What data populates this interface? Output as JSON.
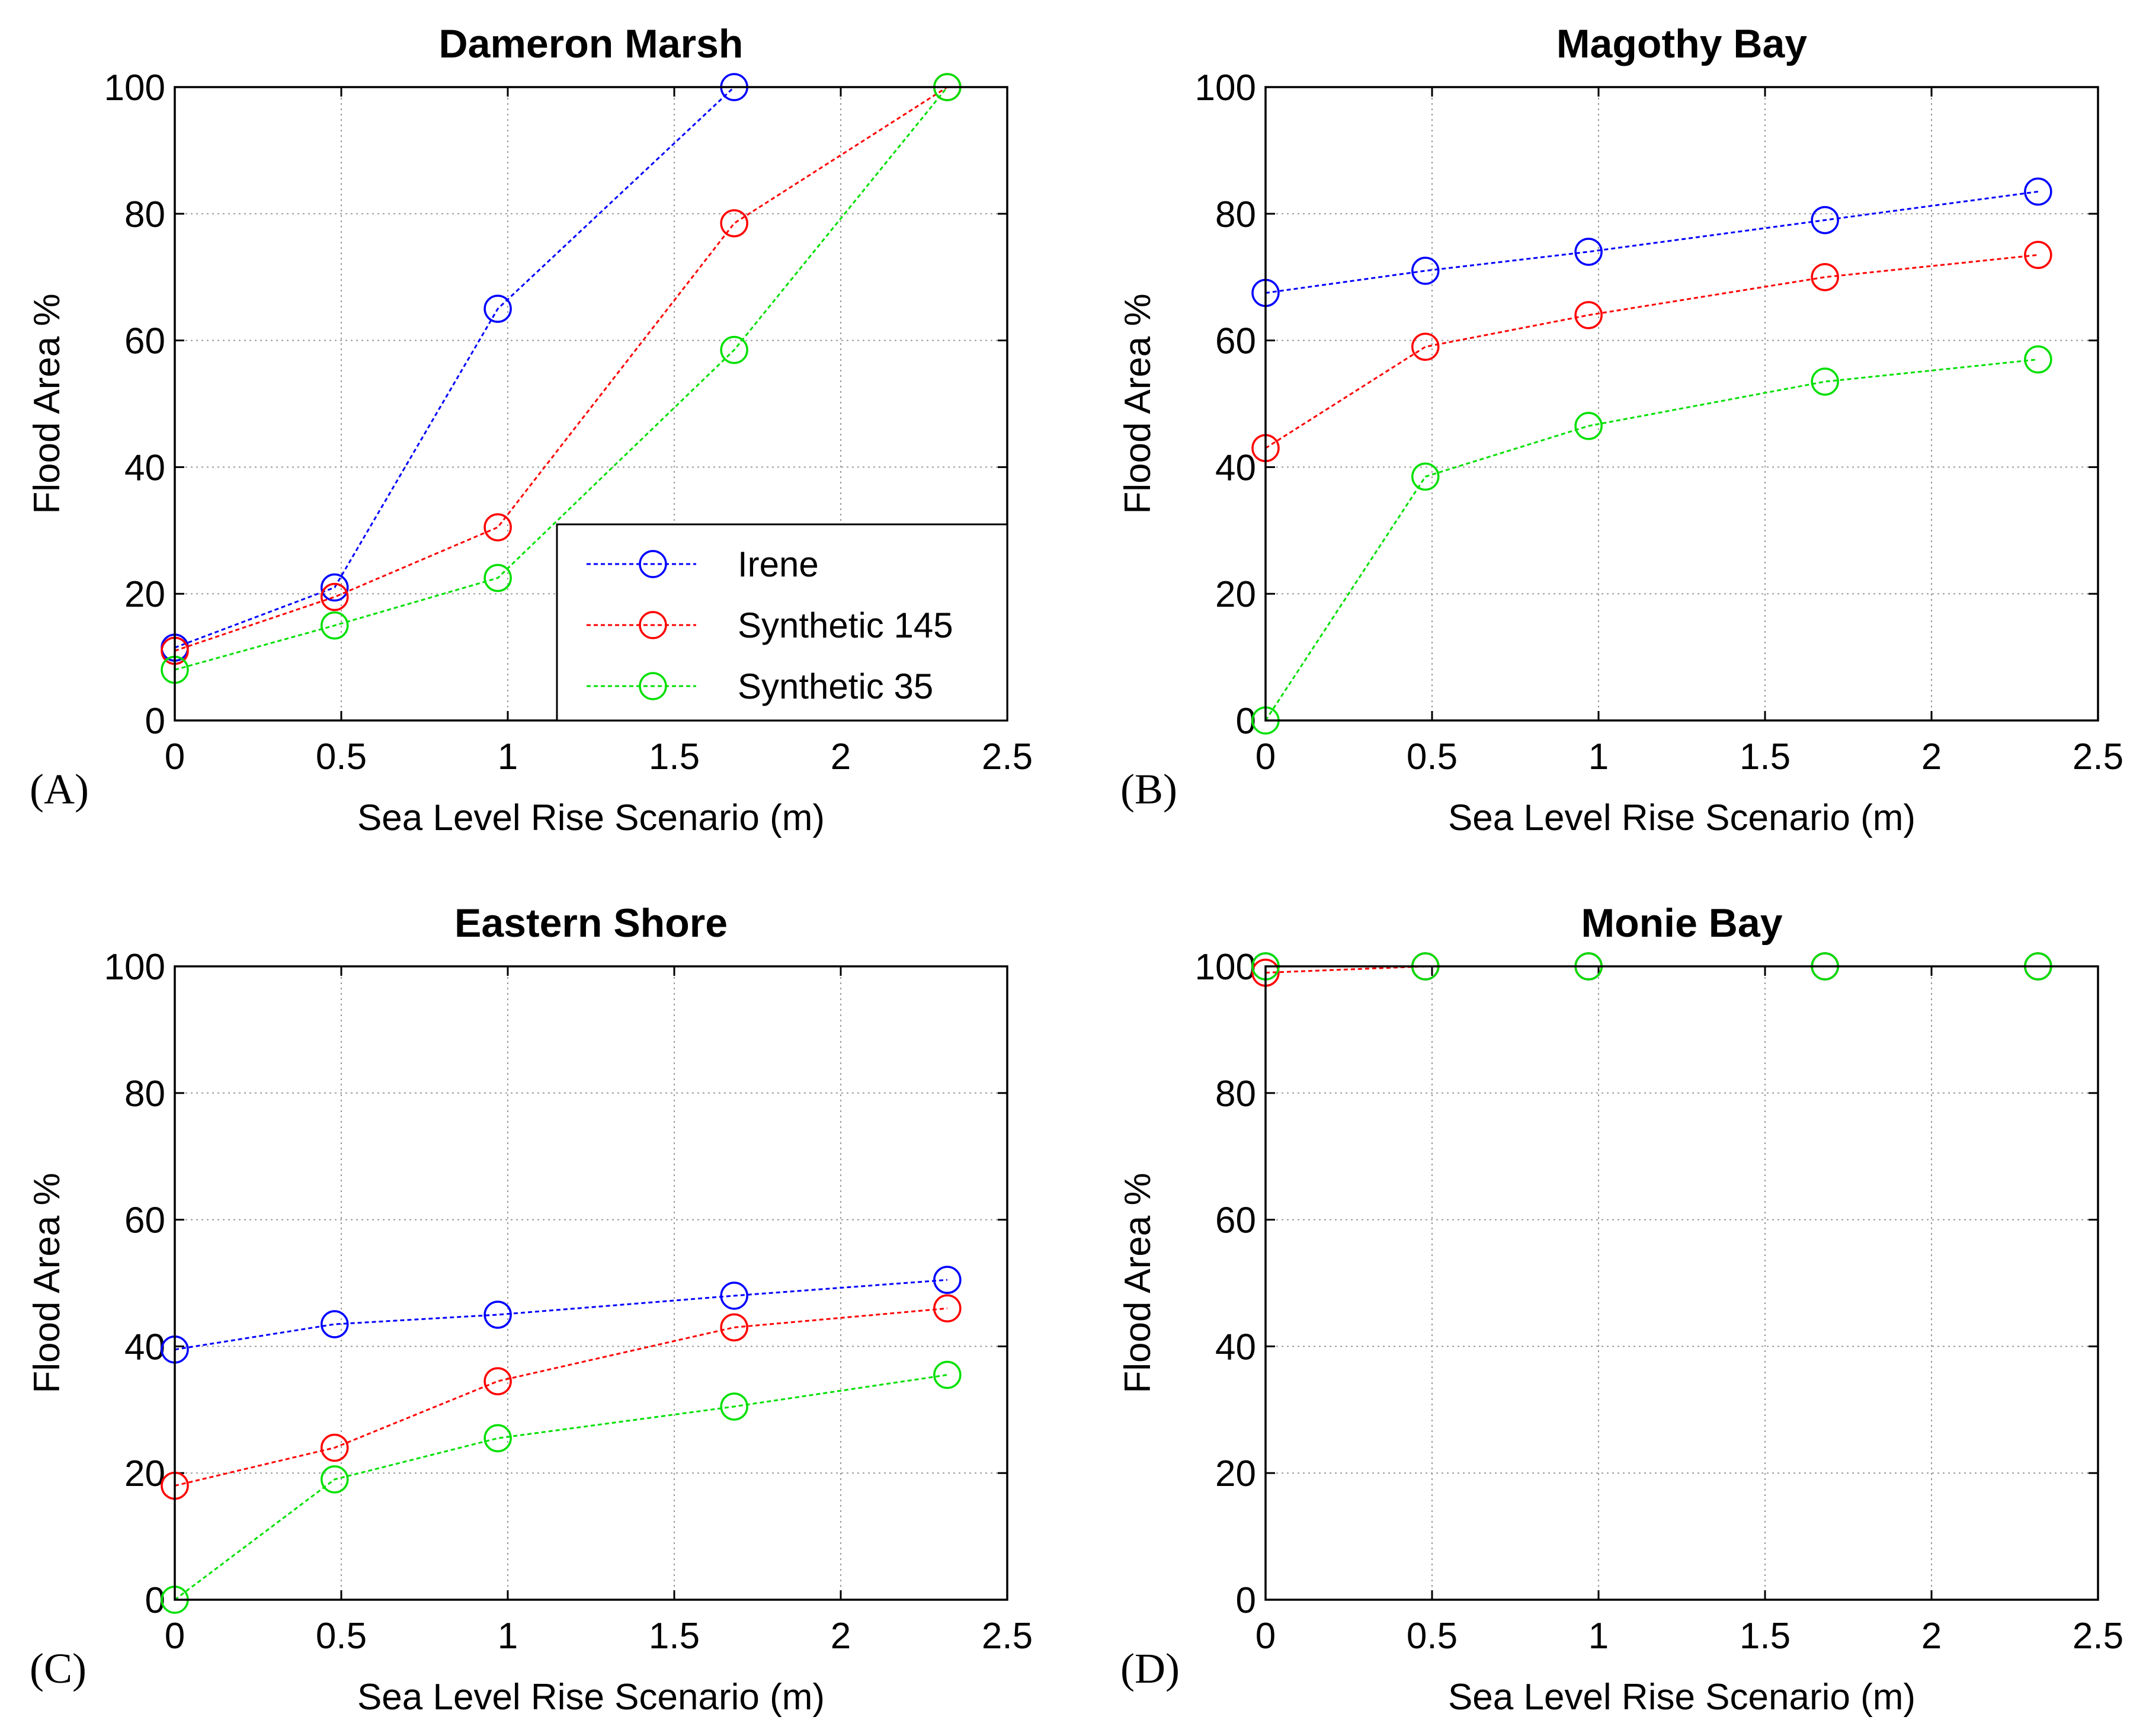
{
  "figure_label": "Flood area versus sea level rise scenario for four marshes",
  "legend": {
    "entries": [
      {
        "name": "Irene",
        "color": "#0000ff"
      },
      {
        "name": "Synthetic 145",
        "color": "#ff0000"
      },
      {
        "name": "Synthetic 35",
        "color": "#00e000"
      }
    ]
  },
  "chart_data": [
    {
      "type": "line",
      "panel": "(A)",
      "title": "Dameron Marsh",
      "xlabel": "Sea Level Rise Scenario (m)",
      "ylabel": "Flood Area %",
      "xlim": [
        0,
        2.5
      ],
      "ylim": [
        0,
        100
      ],
      "xticks": [
        "0",
        "0.5",
        "1",
        "1.5",
        "2",
        "2.5"
      ],
      "yticks": [
        "0",
        "20",
        "40",
        "60",
        "80",
        "100"
      ],
      "grid": true,
      "legend": true,
      "series": [
        {
          "name": "Irene",
          "color": "#0000ff",
          "x": [
            0,
            0.48,
            0.97,
            1.68
          ],
          "y": [
            11.5,
            21,
            65,
            100
          ]
        },
        {
          "name": "Synthetic 145",
          "color": "#ff0000",
          "x": [
            0,
            0.48,
            0.97,
            1.68,
            2.32
          ],
          "y": [
            11,
            19.5,
            30.5,
            78.5,
            100
          ]
        },
        {
          "name": "Synthetic 35",
          "color": "#00e000",
          "x": [
            0,
            0.48,
            0.97,
            1.68,
            2.32
          ],
          "y": [
            8,
            15,
            22.5,
            58.5,
            100
          ]
        }
      ]
    },
    {
      "type": "line",
      "panel": "(B)",
      "title": "Magothy Bay",
      "xlabel": "Sea Level Rise Scenario (m)",
      "ylabel": "Flood Area %",
      "xlim": [
        0,
        2.5
      ],
      "ylim": [
        0,
        100
      ],
      "xticks": [
        "0",
        "0.5",
        "1",
        "1.5",
        "2",
        "2.5"
      ],
      "yticks": [
        "0",
        "20",
        "40",
        "60",
        "80",
        "100"
      ],
      "grid": true,
      "legend": false,
      "series": [
        {
          "name": "Irene",
          "color": "#0000ff",
          "x": [
            0,
            0.48,
            0.97,
            1.68,
            2.32
          ],
          "y": [
            67.5,
            71,
            74,
            79,
            83.5
          ]
        },
        {
          "name": "Synthetic 145",
          "color": "#ff0000",
          "x": [
            0,
            0.48,
            0.97,
            1.68,
            2.32
          ],
          "y": [
            43,
            59,
            64,
            70,
            73.5
          ]
        },
        {
          "name": "Synthetic 35",
          "color": "#00e000",
          "x": [
            0,
            0.48,
            0.97,
            1.68,
            2.32
          ],
          "y": [
            0,
            38.5,
            46.5,
            53.5,
            57
          ]
        }
      ]
    },
    {
      "type": "line",
      "panel": "(C)",
      "title": "Eastern Shore",
      "xlabel": "Sea Level Rise Scenario (m)",
      "ylabel": "Flood Area %",
      "xlim": [
        0,
        2.5
      ],
      "ylim": [
        0,
        100
      ],
      "xticks": [
        "0",
        "0.5",
        "1",
        "1.5",
        "2",
        "2.5"
      ],
      "yticks": [
        "0",
        "20",
        "40",
        "60",
        "80",
        "100"
      ],
      "grid": true,
      "legend": false,
      "series": [
        {
          "name": "Irene",
          "color": "#0000ff",
          "x": [
            0,
            0.48,
            0.97,
            1.68,
            2.32
          ],
          "y": [
            39.5,
            43.5,
            45,
            48,
            50.5
          ]
        },
        {
          "name": "Synthetic 145",
          "color": "#ff0000",
          "x": [
            0,
            0.48,
            0.97,
            1.68,
            2.32
          ],
          "y": [
            18,
            24,
            34.5,
            43,
            46
          ]
        },
        {
          "name": "Synthetic 35",
          "color": "#00e000",
          "x": [
            0,
            0.48,
            0.97,
            1.68,
            2.32
          ],
          "y": [
            0,
            19,
            25.5,
            30.5,
            35.5
          ]
        }
      ]
    },
    {
      "type": "line",
      "panel": "(D)",
      "title": "Monie Bay",
      "xlabel": "Sea Level Rise Scenario (m)",
      "ylabel": "Flood Area %",
      "xlim": [
        0,
        2.5
      ],
      "ylim": [
        0,
        100
      ],
      "xticks": [
        "0",
        "0.5",
        "1",
        "1.5",
        "2",
        "2.5"
      ],
      "yticks": [
        "0",
        "20",
        "40",
        "60",
        "80",
        "100"
      ],
      "grid": true,
      "legend": false,
      "series": [
        {
          "name": "Irene",
          "color": "#0000ff",
          "x": [
            0,
            0.48,
            0.97,
            1.68,
            2.32
          ],
          "y": [
            100,
            100,
            100,
            100,
            100
          ]
        },
        {
          "name": "Synthetic 145",
          "color": "#ff0000",
          "x": [
            0,
            0.48,
            0.97,
            1.68,
            2.32
          ],
          "y": [
            99,
            100,
            100,
            100,
            100
          ]
        },
        {
          "name": "Synthetic 35",
          "color": "#00e000",
          "x": [
            0,
            0.48,
            0.97,
            1.68,
            2.32
          ],
          "y": [
            100,
            100,
            100,
            100,
            100
          ]
        }
      ]
    }
  ]
}
